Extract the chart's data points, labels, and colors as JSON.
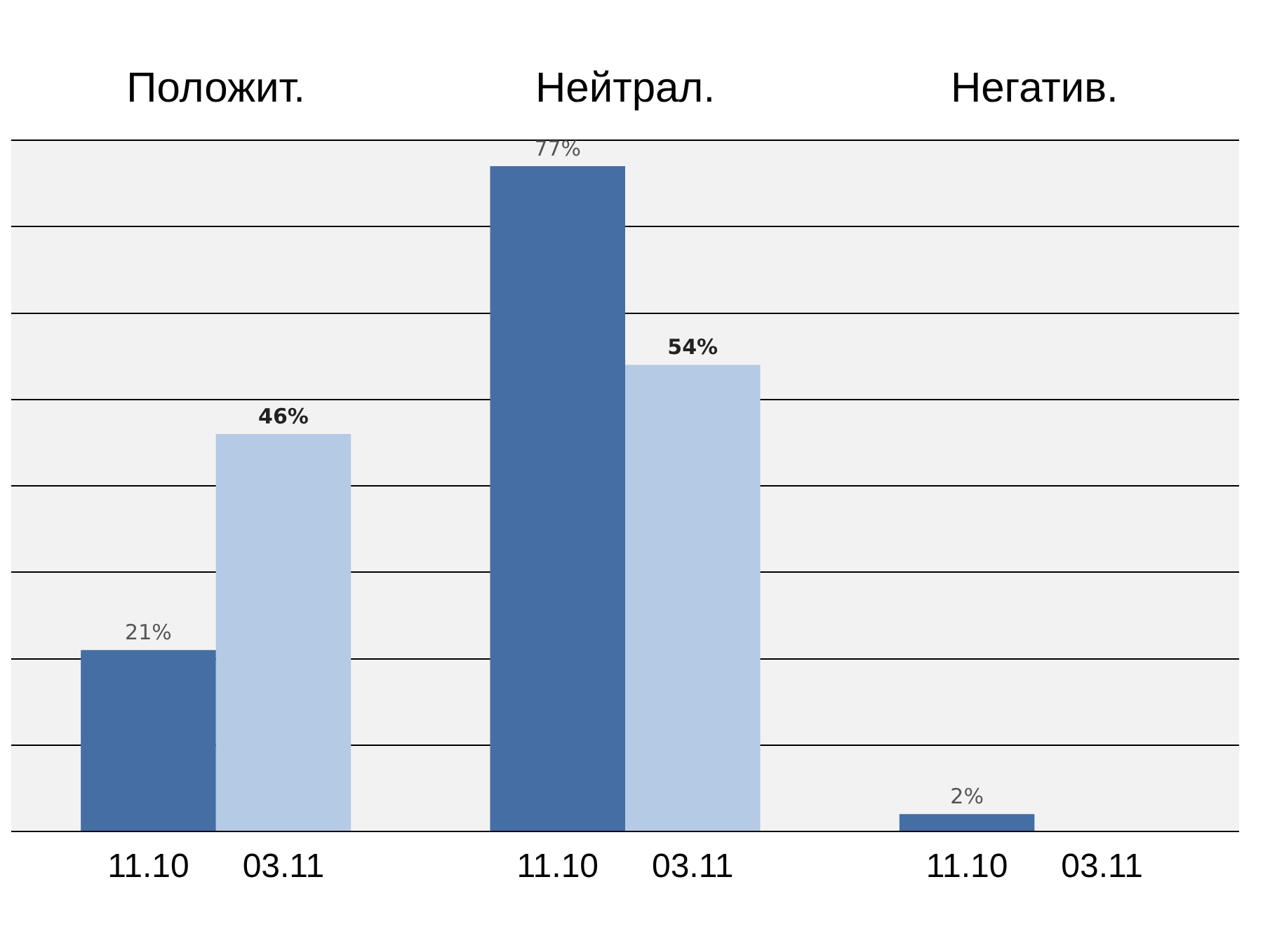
{
  "chart_data": {
    "type": "bar",
    "categories": [
      "Положит.",
      "Нейтрал.",
      "Негатив."
    ],
    "series": [
      {
        "name": "11.10",
        "color": "#456ea4",
        "values": [
          21,
          77,
          2
        ],
        "value_labels": [
          "21%",
          "77%",
          "2%"
        ]
      },
      {
        "name": "03.11",
        "color": "#b5cae4",
        "values": [
          46,
          54,
          null
        ],
        "value_labels": [
          "46%",
          "54%",
          null
        ]
      }
    ],
    "ylim": [
      0,
      80
    ],
    "yticks": [
      {
        "value": 0,
        "label": null
      },
      {
        "value": 10,
        "label": null
      },
      {
        "value": 20,
        "label": null
      },
      {
        "value": 30,
        "label": null
      },
      {
        "value": 40,
        "label": null
      },
      {
        "value": 50,
        "label": null
      },
      {
        "value": 60,
        "label": null
      },
      {
        "value": 70,
        "label": null
      },
      {
        "value": 80,
        "label": null
      }
    ],
    "grid": "y",
    "legend": false,
    "tick_labels": "x"
  }
}
